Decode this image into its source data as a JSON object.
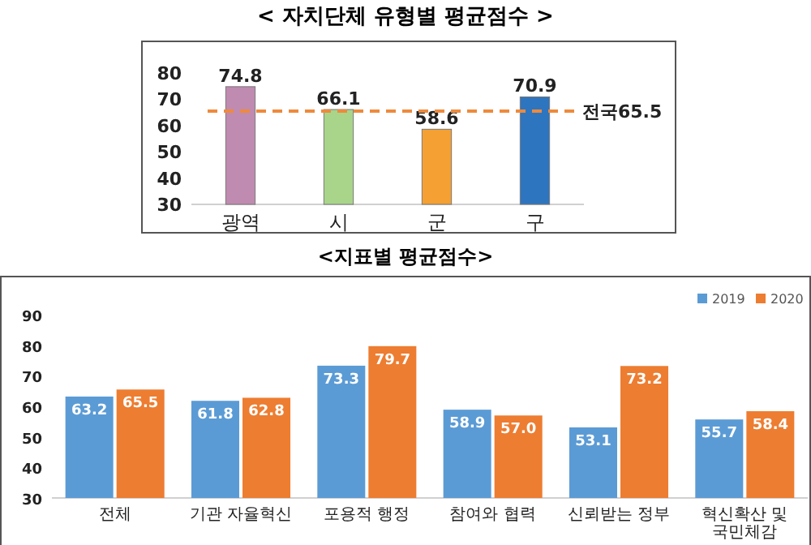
{
  "chart_data": [
    {
      "type": "bar",
      "title": "< 자치단체 유형별 평균점수 >",
      "categories": [
        "광역",
        "시",
        "군",
        "구"
      ],
      "values": [
        74.8,
        66.1,
        58.6,
        70.9
      ],
      "colors": [
        "#c08bb0",
        "#a8d58a",
        "#f5a033",
        "#2e75c0"
      ],
      "ylim": [
        30,
        80
      ],
      "yticks": [
        30,
        40,
        50,
        60,
        70,
        80
      ],
      "data_labels": true,
      "grid": false,
      "ref_lines": [
        {
          "axis": "y",
          "value": 65.5,
          "label": "전국65.5",
          "color": "#ee8a3c",
          "line_style": "dashed"
        }
      ]
    },
    {
      "type": "bar",
      "title": "<지표별 평균점수>",
      "categories": [
        "전체",
        "기관 자율혁신",
        "포용적 행정",
        "참여와 협력",
        "신뢰받는 정부",
        "혁신확산 및 국민체감"
      ],
      "series": [
        {
          "name": "2019",
          "color": "#5b9bd5",
          "values": [
            63.2,
            61.8,
            73.3,
            58.9,
            53.1,
            55.7
          ]
        },
        {
          "name": "2020",
          "color": "#ed7d31",
          "values": [
            65.5,
            62.8,
            79.7,
            57.0,
            73.2,
            58.4
          ],
          "value_labels": [
            "65.5",
            "62.8",
            "79.7",
            "57.0",
            "73.2",
            "58.4"
          ]
        }
      ],
      "ylim": [
        30,
        90
      ],
      "yticks": [
        30,
        40,
        50,
        60,
        70,
        80,
        90
      ],
      "data_labels": true,
      "grid": false,
      "legend": "top right"
    }
  ]
}
